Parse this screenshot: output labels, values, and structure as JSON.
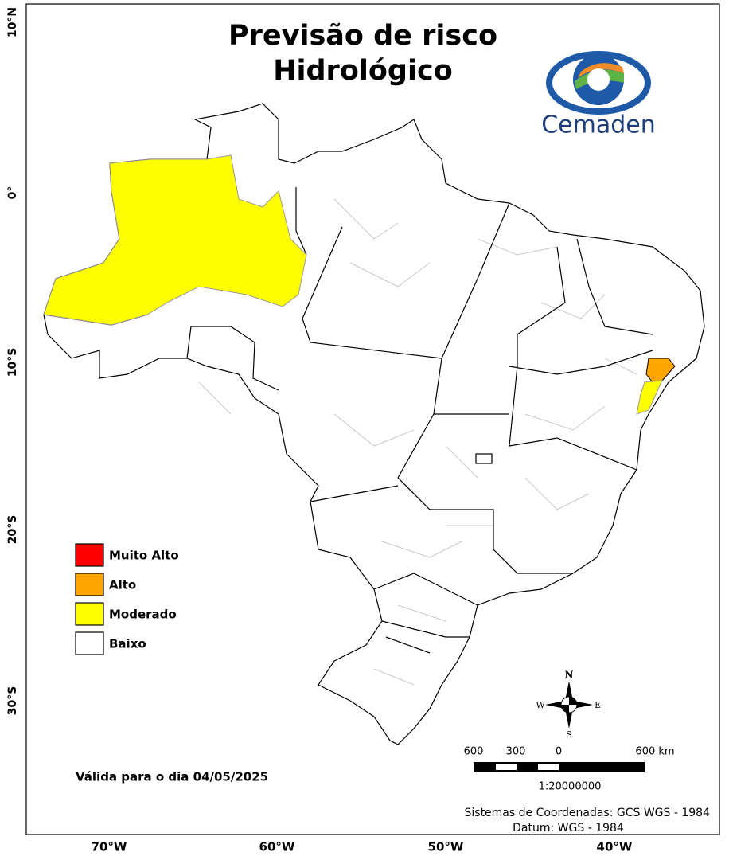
{
  "title_lines": [
    "Previsão de risco",
    "Hidrológico"
  ],
  "logo": {
    "name": "Cemaden"
  },
  "legend": [
    {
      "label": "Muito Alto",
      "color": "#ff0000"
    },
    {
      "label": "Alto",
      "color": "#ffa500"
    },
    {
      "label": "Moderado",
      "color": "#ffff00"
    },
    {
      "label": "Baixo",
      "color": "#ffffff"
    }
  ],
  "validity": "Válida para o dia 04/05/2025",
  "compass": {
    "north": "N",
    "east": "E",
    "south": "S",
    "west": "W"
  },
  "scale_bar": {
    "labels": [
      "600",
      "300",
      "0",
      "600 km"
    ],
    "ratio": "1:20000000"
  },
  "crs": [
    "Sistemas de Coordenadas: GCS WGS - 1984",
    "Datum: WGS - 1984"
  ],
  "x_axis_labels": [
    "70°W",
    "60°W",
    "50°W",
    "40°W"
  ],
  "y_axis_labels": [
    "10°N",
    "0°",
    "10°S",
    "20°S",
    "30°S"
  ]
}
